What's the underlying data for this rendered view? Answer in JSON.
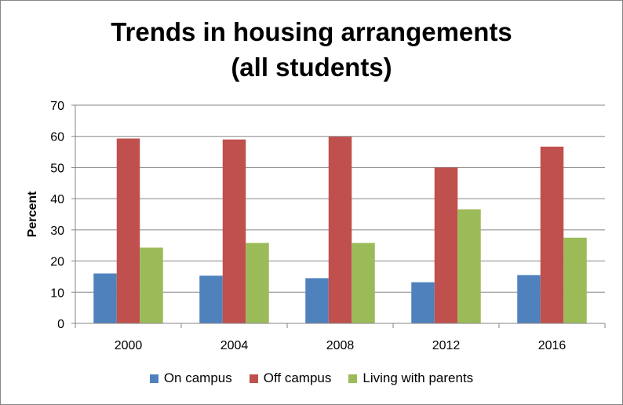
{
  "chart_data": {
    "type": "bar",
    "title_lines": [
      "Trends in housing arrangements",
      "(all students)"
    ],
    "xlabel": "",
    "ylabel": "Percent",
    "categories": [
      "2000",
      "2004",
      "2008",
      "2012",
      "2016"
    ],
    "ylim": [
      0,
      70
    ],
    "yticks": [
      0,
      10,
      20,
      30,
      40,
      50,
      60,
      70
    ],
    "grid": true,
    "legend_position": "bottom",
    "series": [
      {
        "name": "On campus",
        "color": "#4F81BD",
        "values": [
          16,
          15.3,
          14.5,
          13.2,
          15.5
        ]
      },
      {
        "name": "Off campus",
        "color": "#C0504D",
        "values": [
          59.3,
          59,
          59.9,
          50,
          56.7
        ]
      },
      {
        "name": "Living with parents",
        "color": "#9BBB59",
        "values": [
          24.3,
          25.8,
          25.8,
          36.6,
          27.5
        ]
      }
    ]
  }
}
